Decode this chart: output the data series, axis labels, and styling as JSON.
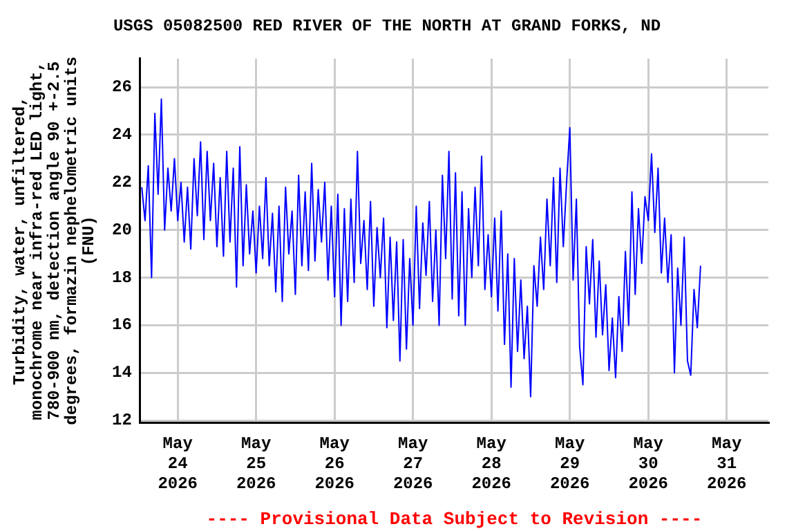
{
  "chart_data": {
    "type": "line",
    "title": "USGS 05082500 RED RIVER OF THE NORTH AT GRAND FORKS, ND",
    "ylabel": "Turbidity, water, unfiltered,\nmonochrome near infra-red LED light,\n780-900 nm, detection angle 90 +-2.5\ndegrees, formazin nephelometric units\n(FNU)",
    "annotations": [
      "---- Provisional Data Subject to Revision ----"
    ],
    "x": [
      "2026-05-23T13:00",
      "2026-05-23T14:00",
      "2026-05-23T15:00",
      "2026-05-23T16:00",
      "2026-05-23T17:00",
      "2026-05-23T18:00",
      "2026-05-23T19:00",
      "2026-05-23T20:00",
      "2026-05-23T21:00",
      "2026-05-23T22:00",
      "2026-05-23T23:00",
      "2026-05-24T00:00",
      "2026-05-24T01:00",
      "2026-05-24T02:00",
      "2026-05-24T03:00",
      "2026-05-24T04:00",
      "2026-05-24T05:00",
      "2026-05-24T06:00",
      "2026-05-24T07:00",
      "2026-05-24T08:00",
      "2026-05-24T09:00",
      "2026-05-24T10:00",
      "2026-05-24T11:00",
      "2026-05-24T12:00",
      "2026-05-24T13:00",
      "2026-05-24T14:00",
      "2026-05-24T15:00",
      "2026-05-24T16:00",
      "2026-05-24T17:00",
      "2026-05-24T18:00",
      "2026-05-24T19:00",
      "2026-05-24T20:00",
      "2026-05-24T21:00",
      "2026-05-24T22:00",
      "2026-05-24T23:00",
      "2026-05-25T00:00",
      "2026-05-25T01:00",
      "2026-05-25T02:00",
      "2026-05-25T03:00",
      "2026-05-25T04:00",
      "2026-05-25T05:00",
      "2026-05-25T06:00",
      "2026-05-25T07:00",
      "2026-05-25T08:00",
      "2026-05-25T09:00",
      "2026-05-25T10:00",
      "2026-05-25T11:00",
      "2026-05-25T12:00",
      "2026-05-25T13:00",
      "2026-05-25T14:00",
      "2026-05-25T15:00",
      "2026-05-25T16:00",
      "2026-05-25T17:00",
      "2026-05-25T18:00",
      "2026-05-25T19:00",
      "2026-05-25T20:00",
      "2026-05-25T21:00",
      "2026-05-25T22:00",
      "2026-05-25T23:00",
      "2026-05-26T00:00",
      "2026-05-26T01:00",
      "2026-05-26T02:00",
      "2026-05-26T03:00",
      "2026-05-26T04:00",
      "2026-05-26T05:00",
      "2026-05-26T06:00",
      "2026-05-26T07:00",
      "2026-05-26T08:00",
      "2026-05-26T09:00",
      "2026-05-26T10:00",
      "2026-05-26T11:00",
      "2026-05-26T12:00",
      "2026-05-26T13:00",
      "2026-05-26T14:00",
      "2026-05-26T15:00",
      "2026-05-26T16:00",
      "2026-05-26T17:00",
      "2026-05-26T18:00",
      "2026-05-26T19:00",
      "2026-05-26T20:00",
      "2026-05-26T21:00",
      "2026-05-26T22:00",
      "2026-05-26T23:00",
      "2026-05-27T00:00",
      "2026-05-27T01:00",
      "2026-05-27T02:00",
      "2026-05-27T03:00",
      "2026-05-27T04:00",
      "2026-05-27T05:00",
      "2026-05-27T06:00",
      "2026-05-27T07:00",
      "2026-05-27T08:00",
      "2026-05-27T09:00",
      "2026-05-27T10:00",
      "2026-05-27T11:00",
      "2026-05-27T12:00",
      "2026-05-27T13:00",
      "2026-05-27T14:00",
      "2026-05-27T15:00",
      "2026-05-27T16:00",
      "2026-05-27T17:00",
      "2026-05-27T18:00",
      "2026-05-27T19:00",
      "2026-05-27T20:00",
      "2026-05-27T21:00",
      "2026-05-27T22:00",
      "2026-05-27T23:00",
      "2026-05-28T00:00",
      "2026-05-28T01:00",
      "2026-05-28T02:00",
      "2026-05-28T03:00",
      "2026-05-28T04:00",
      "2026-05-28T05:00",
      "2026-05-28T06:00",
      "2026-05-28T07:00",
      "2026-05-28T08:00",
      "2026-05-28T09:00",
      "2026-05-28T10:00",
      "2026-05-28T11:00",
      "2026-05-28T12:00",
      "2026-05-28T13:00",
      "2026-05-28T14:00",
      "2026-05-28T15:00",
      "2026-05-28T16:00",
      "2026-05-28T17:00",
      "2026-05-28T18:00",
      "2026-05-28T19:00",
      "2026-05-28T20:00",
      "2026-05-28T21:00",
      "2026-05-28T22:00",
      "2026-05-28T23:00",
      "2026-05-29T00:00",
      "2026-05-29T01:00",
      "2026-05-29T02:00",
      "2026-05-29T03:00",
      "2026-05-29T04:00",
      "2026-05-29T05:00",
      "2026-05-29T06:00",
      "2026-05-29T07:00",
      "2026-05-29T08:00",
      "2026-05-29T09:00",
      "2026-05-29T10:00",
      "2026-05-29T11:00",
      "2026-05-29T12:00",
      "2026-05-29T13:00",
      "2026-05-29T14:00",
      "2026-05-29T15:00",
      "2026-05-29T16:00",
      "2026-05-29T17:00",
      "2026-05-29T18:00",
      "2026-05-29T19:00",
      "2026-05-29T20:00",
      "2026-05-29T21:00",
      "2026-05-29T22:00",
      "2026-05-29T23:00",
      "2026-05-30T00:00",
      "2026-05-30T01:00",
      "2026-05-30T02:00",
      "2026-05-30T03:00",
      "2026-05-30T04:00",
      "2026-05-30T05:00",
      "2026-05-30T06:00",
      "2026-05-30T07:00",
      "2026-05-30T08:00",
      "2026-05-30T09:00",
      "2026-05-30T10:00",
      "2026-05-30T11:00",
      "2026-05-30T12:00",
      "2026-05-30T13:00",
      "2026-05-30T14:00",
      "2026-05-30T15:00",
      "2026-05-30T16:00"
    ],
    "series": [
      {
        "color": "#0000ff",
        "values": [
          21.8,
          20.4,
          22.7,
          18.0,
          24.9,
          21.5,
          25.5,
          20.0,
          22.6,
          20.8,
          23.0,
          20.4,
          22.0,
          19.5,
          21.8,
          19.2,
          23.0,
          20.6,
          23.7,
          19.6,
          23.3,
          20.4,
          22.8,
          19.3,
          22.2,
          18.9,
          23.3,
          19.5,
          22.6,
          17.6,
          23.5,
          18.5,
          21.9,
          19.0,
          20.8,
          18.2,
          21.0,
          18.8,
          22.2,
          18.5,
          20.7,
          17.4,
          21.0,
          17.0,
          21.8,
          19.0,
          20.8,
          17.3,
          22.3,
          18.5,
          21.6,
          18.3,
          22.8,
          18.7,
          21.7,
          19.5,
          22.0,
          17.9,
          21.0,
          17.2,
          21.5,
          16.0,
          20.9,
          17.0,
          21.3,
          17.8,
          23.3,
          18.6,
          20.4,
          17.5,
          21.2,
          16.8,
          20.1,
          18.0,
          20.5,
          15.9,
          19.7,
          16.2,
          19.5,
          14.5,
          19.6,
          15.0,
          18.8,
          16.0,
          21.0,
          16.7,
          20.3,
          18.1,
          21.2,
          17.0,
          20.0,
          16.0,
          22.3,
          18.8,
          23.3,
          17.1,
          22.4,
          16.4,
          21.6,
          16.0,
          20.9,
          18.0,
          21.8,
          18.5,
          23.1,
          17.5,
          19.8,
          17.2,
          20.5,
          16.6,
          20.8,
          15.2,
          19.0,
          13.4,
          18.8,
          14.9,
          17.9,
          14.6,
          16.8,
          13.0,
          18.5,
          16.8,
          19.7,
          17.5,
          21.3,
          18.5,
          22.2,
          17.8,
          22.6,
          19.3,
          22.0,
          24.3,
          17.9,
          21.3,
          15.1,
          13.5,
          19.3,
          16.9,
          19.6,
          15.5,
          18.7,
          15.6,
          17.7,
          14.1,
          16.3,
          13.8,
          17.2,
          14.9,
          19.1,
          16.0,
          21.6,
          17.3,
          20.9,
          18.6,
          21.4,
          20.4,
          23.2,
          19.9,
          22.6,
          18.2,
          20.5,
          17.8,
          19.8,
          14.0,
          18.4,
          16.0,
          19.7,
          14.5,
          13.9,
          17.5,
          15.9,
          18.5
        ]
      }
    ],
    "xlim": [
      "2026-05-23T12:30",
      "2026-05-31T12:45"
    ],
    "xticks": [
      {
        "value": "2026-05-24",
        "label": "May\n24\n2026"
      },
      {
        "value": "2026-05-25",
        "label": "May\n25\n2026"
      },
      {
        "value": "2026-05-26",
        "label": "May\n26\n2026"
      },
      {
        "value": "2026-05-27",
        "label": "May\n27\n2026"
      },
      {
        "value": "2026-05-28",
        "label": "May\n28\n2026"
      },
      {
        "value": "2026-05-29",
        "label": "May\n29\n2026"
      },
      {
        "value": "2026-05-30",
        "label": "May\n30\n2026"
      },
      {
        "value": "2026-05-31",
        "label": "May\n31\n2026"
      }
    ],
    "ylim": [
      11.9,
      27.2
    ],
    "yticks": [
      12,
      14,
      16,
      18,
      20,
      22,
      24,
      26
    ],
    "grid": true,
    "legend": false,
    "marker": "none",
    "line_style": "solid"
  }
}
